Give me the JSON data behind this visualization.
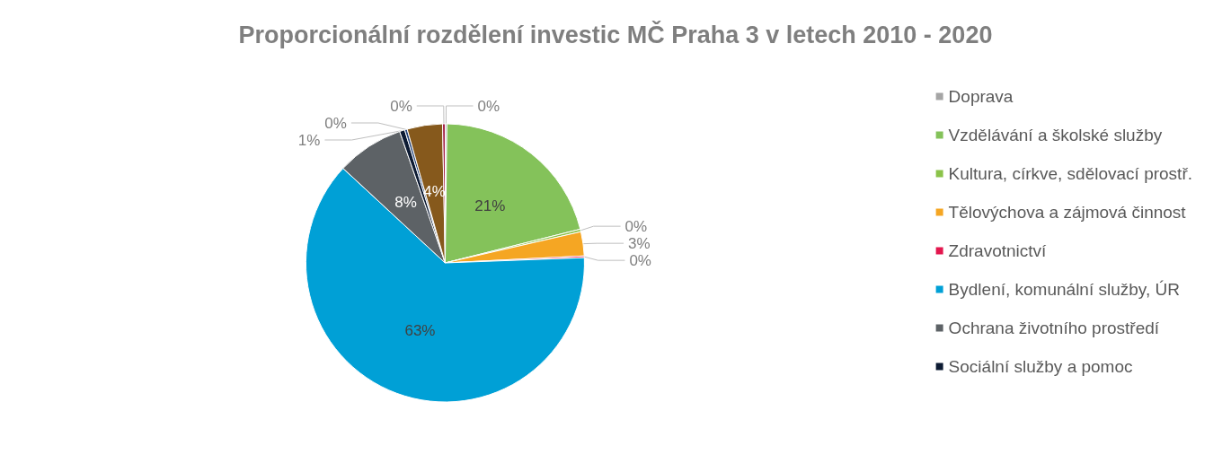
{
  "chart_data": {
    "type": "pie",
    "title": "Proporcionální rozdělení investic MČ Praha 3 v letech 2010 - 2020",
    "categories": [
      "Doprava",
      "Vzdělávání a školské služby",
      "Kultura, církve, sdělovací prostř.",
      "Tělovýchova a zájmová činnost",
      "Zdravotnictví",
      "Bydlení, komunální služby, ÚR",
      "Ochrana životního prostředí",
      "Sociální služby a pomoc",
      null,
      null,
      null
    ],
    "values": [
      0.2,
      20.9,
      0.3,
      2.8,
      0.2,
      62.5,
      7.8,
      0.6,
      0.3,
      4.1,
      0.3
    ],
    "value_labels": [
      "0%",
      "21%",
      "0%",
      "3%",
      "0%",
      "63%",
      "8%",
      "1%",
      "0%",
      "4%",
      "0%"
    ],
    "colors": [
      "#a5a5a5",
      "#84c25a",
      "#8bc34a",
      "#f5a623",
      "#e3174e",
      "#00a0d6",
      "#5d6266",
      "#0d1b33",
      "#264478",
      "#86591c",
      "#a0153e"
    ],
    "legend": "right"
  }
}
